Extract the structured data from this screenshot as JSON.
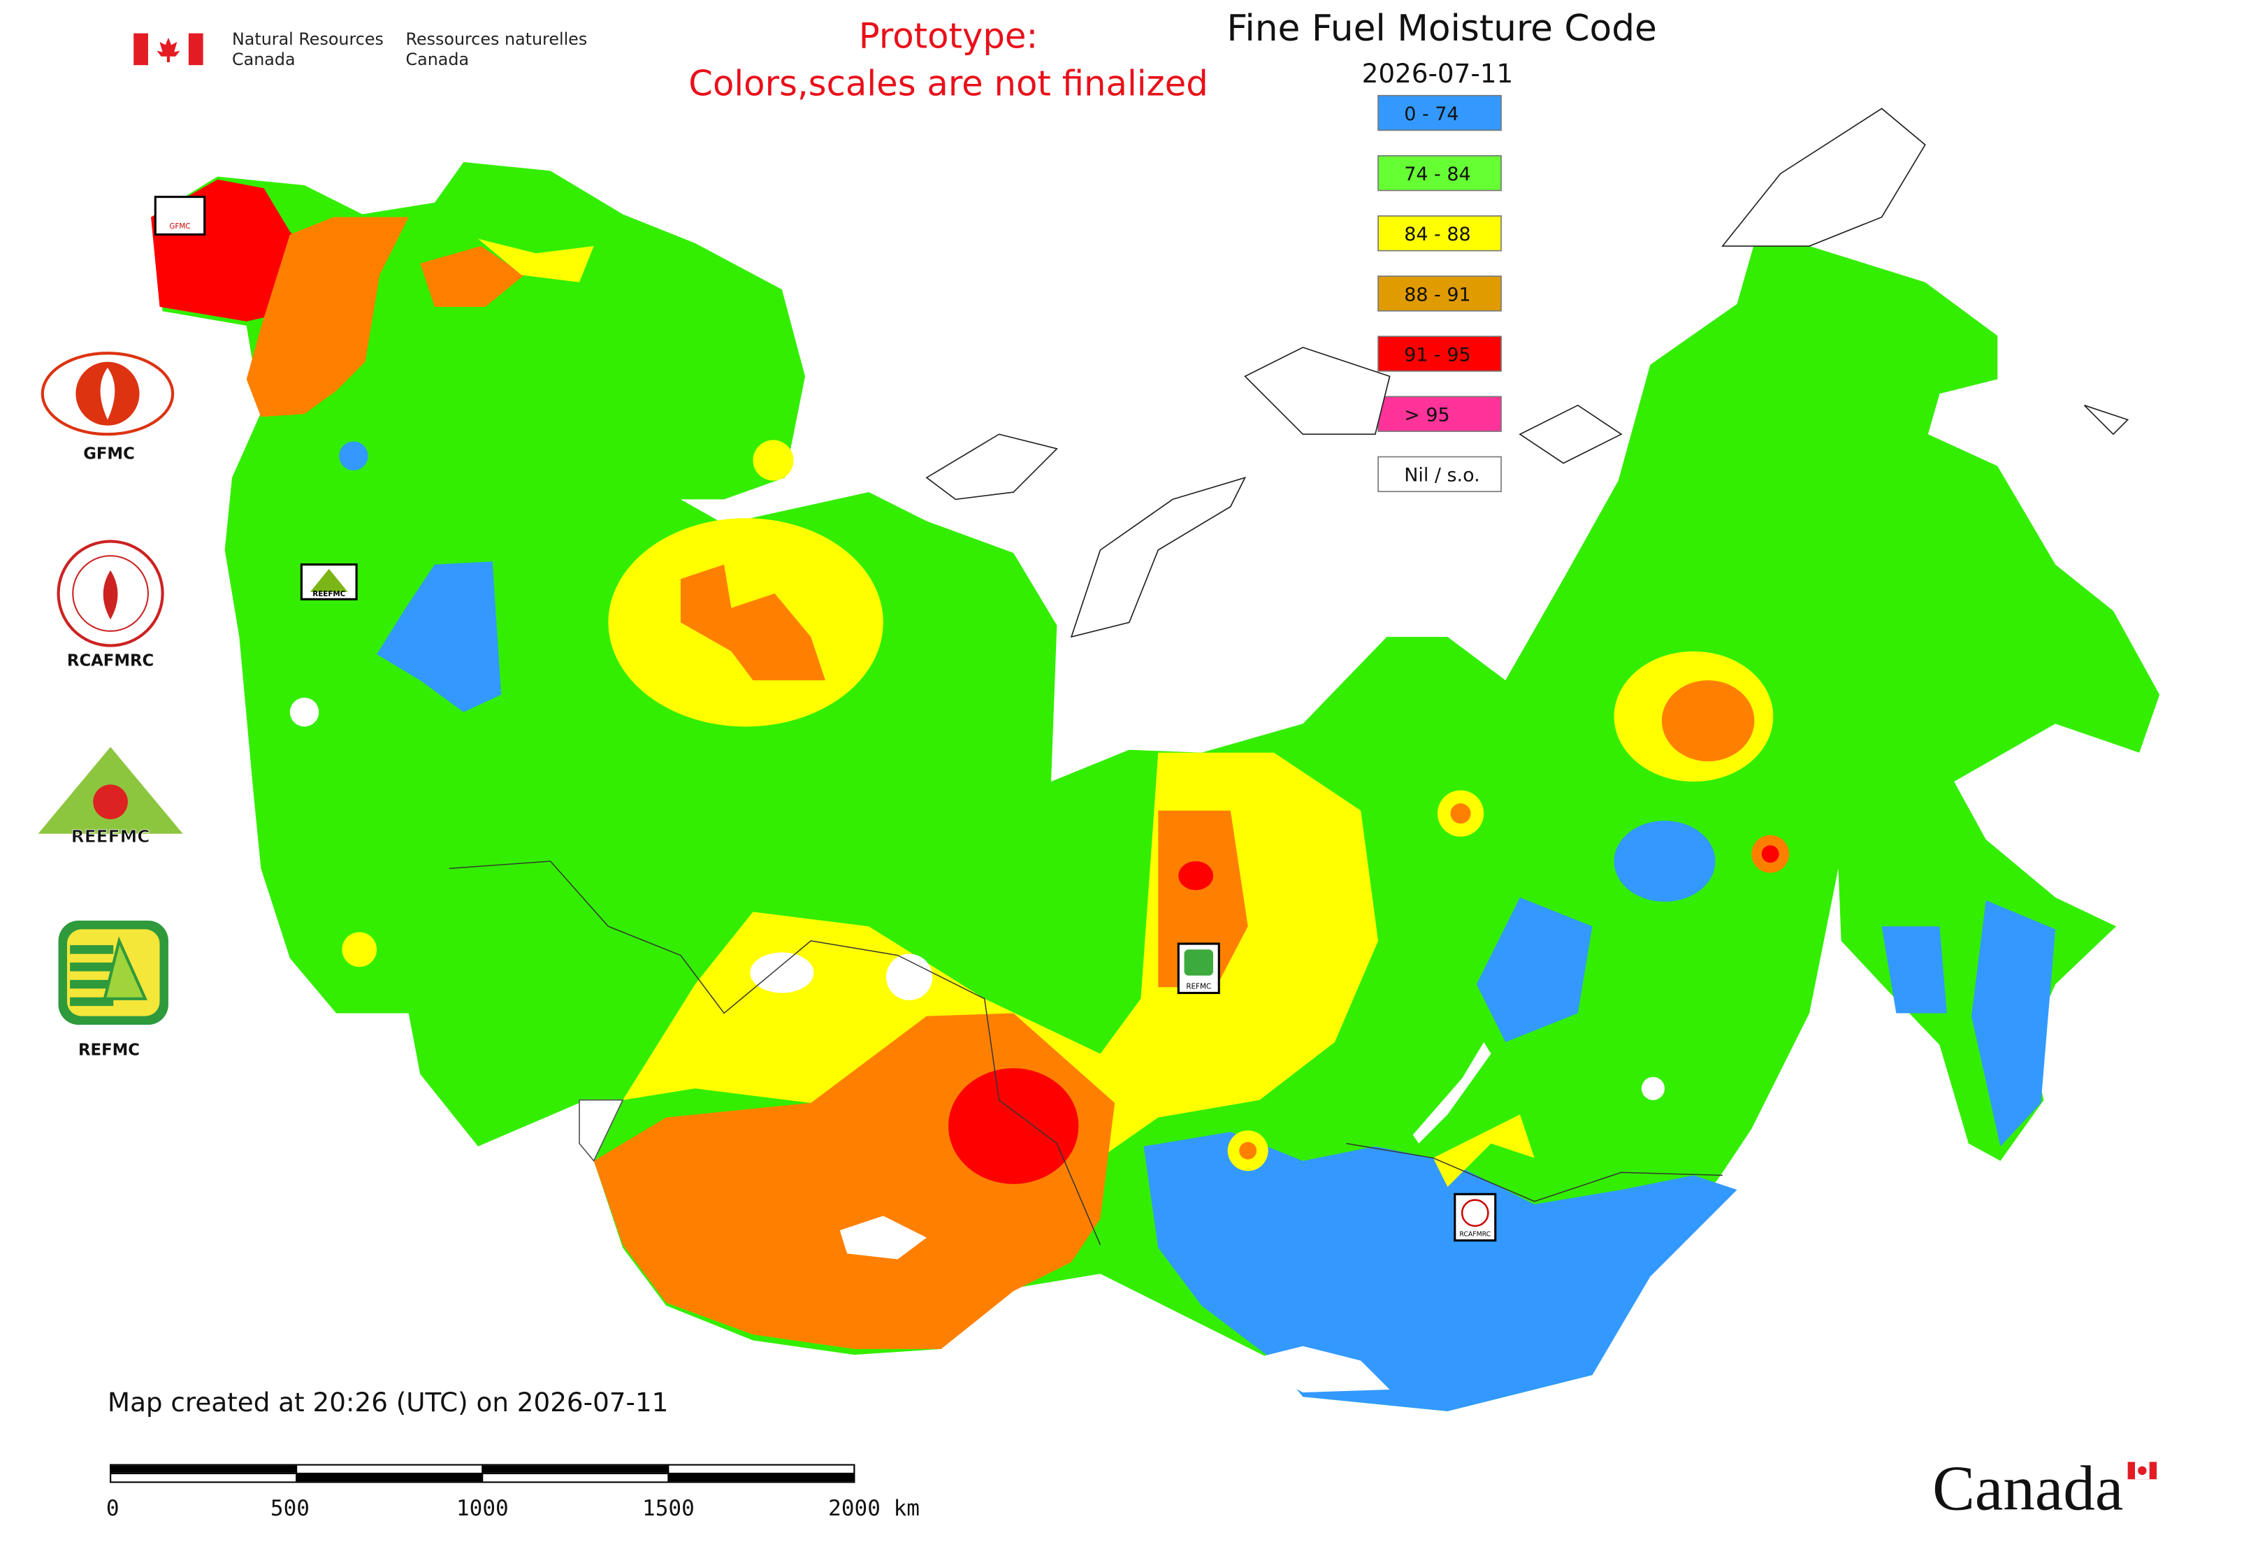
{
  "header": {
    "agency_en": [
      "Natural Resources",
      "Canada"
    ],
    "agency_fr": [
      "Ressources naturelles",
      "Canada"
    ],
    "notice": [
      "Prototype:",
      "Colors,scales are not finalized"
    ],
    "title": "Fine Fuel Moisture Code",
    "date": "2026-07-11"
  },
  "legend": [
    {
      "label": "0 - 74",
      "color": "#3399ff"
    },
    {
      "label": "74 - 84",
      "color": "#66ff33"
    },
    {
      "label": "84 - 88",
      "color": "#ffff00"
    },
    {
      "label": "88 - 91",
      "color": "#e09b00"
    },
    {
      "label": "91 - 95",
      "color": "#ff0000"
    },
    {
      "label": "> 95",
      "color": "#ff3399"
    },
    {
      "label": "Nil / s.o.",
      "color": "#ffffff"
    }
  ],
  "logos": [
    "GFMC",
    "RCAFMRC",
    "REEFMC",
    "REFMC"
  ],
  "map_markers": [
    "GFMC",
    "REEFMC",
    "REFMC",
    "RCAFMRC"
  ],
  "footer": {
    "created": "Map created at 20:26 (UTC) on 2026-07-11",
    "scale_labels": [
      "0",
      "500",
      "1000",
      "1500",
      "2000 km"
    ],
    "wordmark": "Canada"
  }
}
